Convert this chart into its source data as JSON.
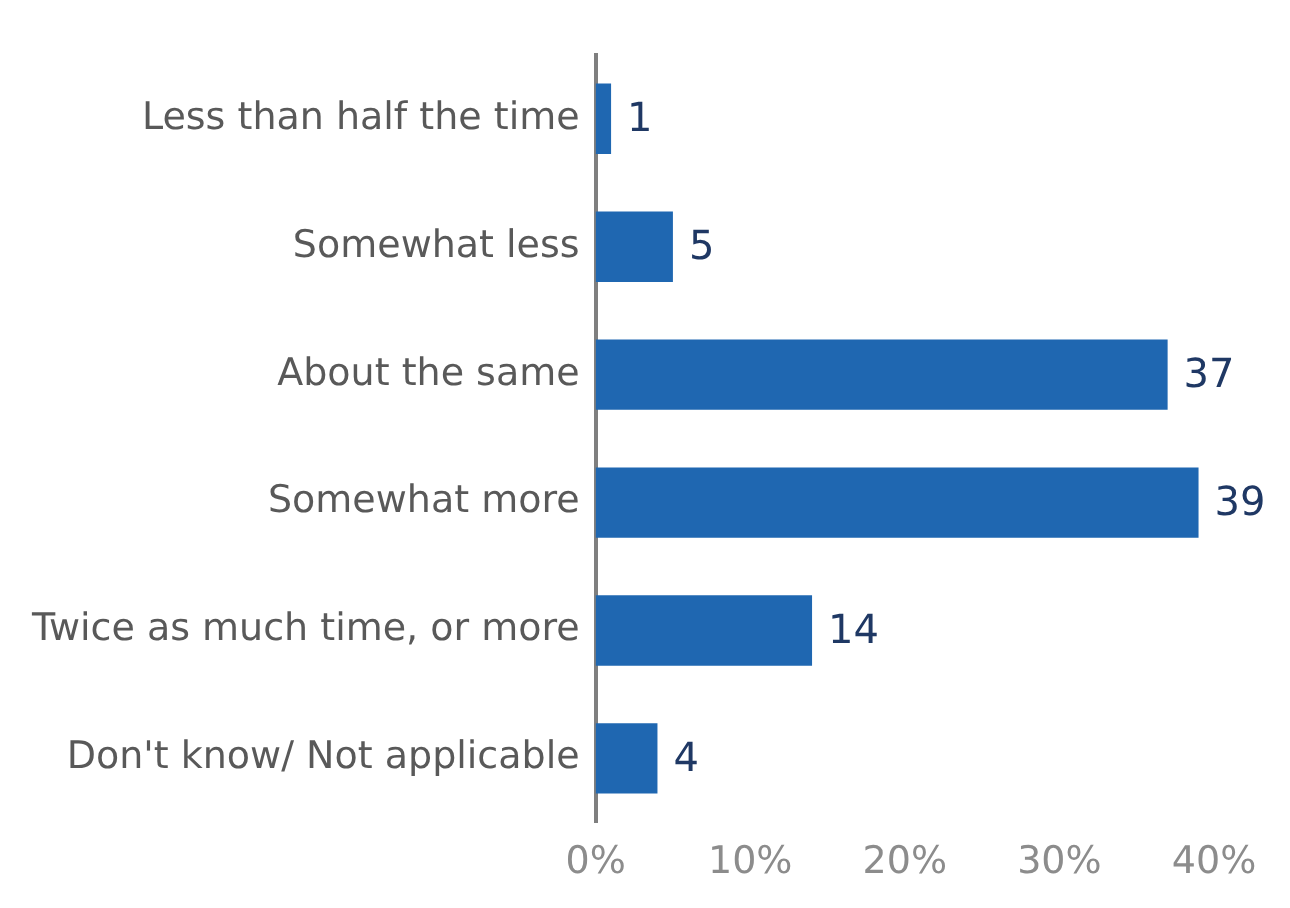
{
  "chart_data": {
    "type": "bar",
    "orientation": "horizontal",
    "categories": [
      "Less than half the time",
      "Somewhat less",
      "About the same",
      "Somewhat more",
      "Twice as much time, or more",
      "Don't know/ Not applicable"
    ],
    "values": [
      1,
      5,
      37,
      39,
      14,
      4
    ],
    "color": "#1f67b1",
    "xlim": [
      0,
      40
    ],
    "xticks": [
      {
        "value": 0,
        "label": "0%"
      },
      {
        "value": 10,
        "label": "10%"
      },
      {
        "value": 20,
        "label": "20%"
      },
      {
        "value": 30,
        "label": "30%"
      },
      {
        "value": 40,
        "label": "40%"
      }
    ],
    "data_labels": true,
    "grid": false,
    "legend": false
  }
}
